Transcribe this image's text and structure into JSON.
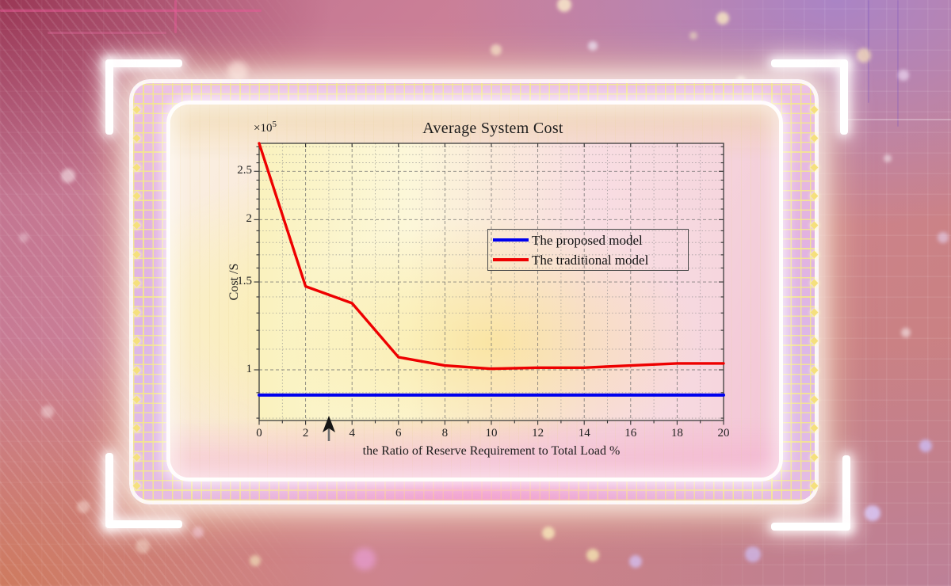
{
  "chart": {
    "title": "Average System Cost",
    "y_exponent": {
      "base": "×10",
      "exp": "5"
    },
    "ylabel": "Cost /S",
    "xlabel": "the Ratio of Reserve Requirement to Total Load %",
    "legend": {
      "items": [
        {
          "label": "The proposed model",
          "color": "#0000ee"
        },
        {
          "label": "The traditional model",
          "color": "#ee0000"
        }
      ]
    }
  },
  "chart_data": {
    "type": "line",
    "title": "Average System Cost",
    "xlabel": "the Ratio of Reserve Requirement to Total Load %",
    "ylabel": "Cost /S",
    "y_axis_multiplier": "1e5",
    "yscale": "log",
    "grid": true,
    "minor_grid": true,
    "legend_position": "inside-upper-right",
    "xlim": [
      0,
      20
    ],
    "ylim_1e5": [
      0.79,
      2.85
    ],
    "x_ticks": [
      0,
      2,
      4,
      6,
      8,
      10,
      12,
      14,
      16,
      18,
      20
    ],
    "y_ticks_1e5": [
      1,
      1.5,
      2,
      2.5
    ],
    "y_minor_ticks_1e5": [
      0.8,
      0.9,
      1.1,
      1.2,
      1.3,
      1.4,
      1.6,
      1.7,
      1.8,
      1.9,
      2.1,
      2.2,
      2.3,
      2.4,
      2.6,
      2.7,
      2.8
    ],
    "x": [
      0,
      2,
      4,
      6,
      8,
      10,
      12,
      14,
      16,
      18,
      20
    ],
    "series": [
      {
        "name": "The proposed model",
        "color": "#0000ee",
        "values_1e5": [
          0.89,
          0.89,
          0.89,
          0.89,
          0.89,
          0.89,
          0.89,
          0.89,
          0.89,
          0.89,
          0.89
        ]
      },
      {
        "name": "The traditional model",
        "color": "#ee0000",
        "values_1e5": [
          2.85,
          1.47,
          1.36,
          1.06,
          1.02,
          1.005,
          1.01,
          1.01,
          1.02,
          1.03,
          1.03
        ]
      }
    ]
  }
}
